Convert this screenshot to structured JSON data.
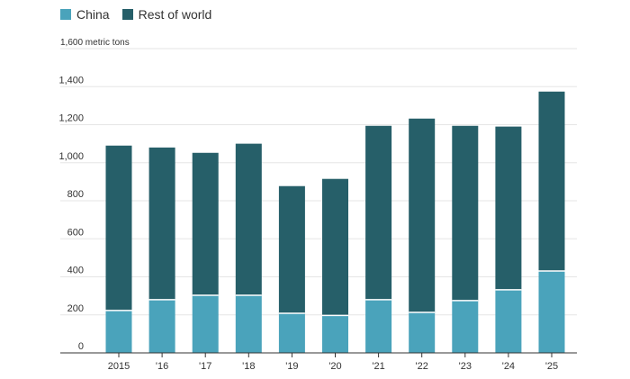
{
  "chart_data": {
    "type": "bar",
    "stacked": true,
    "title": "",
    "xlabel": "",
    "ylabel": "",
    "y_unit_label": "1,600 metric tons",
    "ylim": [
      0,
      1600
    ],
    "yticks": [
      0,
      200,
      400,
      600,
      800,
      1000,
      1200,
      1400,
      1600
    ],
    "ytick_labels": [
      "0",
      "200",
      "400",
      "600",
      "800",
      "1,000",
      "1,200",
      "1,400",
      "1,600 metric tons"
    ],
    "grid": true,
    "legend_position": "top-left",
    "categories": [
      "2015",
      "'16",
      "'17",
      "'18",
      "'19",
      "'20",
      "'21",
      "'22",
      "'23",
      "'24",
      "'25"
    ],
    "series": [
      {
        "name": "China",
        "color": "#4aa3bb",
        "values": [
          223,
          280,
          303,
          303,
          208,
          197,
          280,
          213,
          275,
          332,
          431
        ]
      },
      {
        "name": "Rest of world",
        "color": "#265f69",
        "values": [
          867,
          800,
          749,
          797,
          669,
          718,
          914,
          1019,
          919,
          858,
          943
        ]
      }
    ]
  },
  "legend": {
    "items": [
      {
        "label": "China",
        "color": "#4aa3bb"
      },
      {
        "label": "Rest of world",
        "color": "#265f69"
      }
    ]
  }
}
